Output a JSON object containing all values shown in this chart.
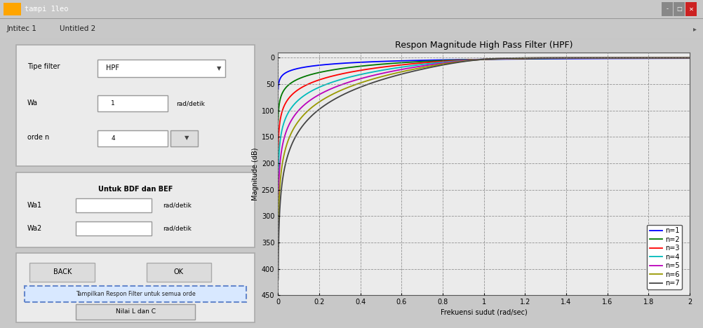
{
  "title": "Respon Magnitude High Pass Filter (HPF)",
  "xlabel": "Frekuensi sudut (rad/sec)",
  "ylabel": "Magnitude (dB)",
  "xlim": [
    0,
    2
  ],
  "ylim": [
    -450,
    10
  ],
  "ytick_vals": [
    0,
    -50,
    -100,
    -150,
    -200,
    -250,
    -300,
    -350,
    -400,
    -450
  ],
  "ytick_labels": [
    "0",
    "50",
    "100",
    "150",
    "200",
    "250",
    "300",
    "350",
    "400",
    "450"
  ],
  "xtick_vals": [
    0,
    0.2,
    0.4,
    0.6,
    0.8,
    1.0,
    1.2,
    1.4,
    1.6,
    1.8,
    2.0
  ],
  "xtick_labels": [
    "0",
    "0.2",
    "0.4",
    "0.6",
    "0.8",
    "1",
    "1.2",
    "1.4",
    "1.6",
    "1.8",
    "2"
  ],
  "orders": [
    1,
    2,
    3,
    4,
    5,
    6,
    7
  ],
  "line_colors": [
    "#0000FF",
    "#007700",
    "#FF0000",
    "#00BBBB",
    "#BB00BB",
    "#999900",
    "#444444"
  ],
  "legend_labels": [
    "n=1",
    "n=2",
    "n=3",
    "n=4",
    "n=5",
    "n=6",
    "n=7"
  ],
  "bg_color": "#C8C8C8",
  "panel_color": "#E8E8E8",
  "plot_bg": "#EAEAEA",
  "title_bar_color": "#1F3870",
  "title_bar_text": "tampi 1leo",
  "tab1": "Jntitec 1",
  "tab2": "Untitled 2",
  "type_filter_label": "Tipe filter",
  "type_filter_value": "HPF",
  "wa_label": "Wa",
  "wa_value": "1",
  "wa_unit": "rad/detik",
  "order_label": "orde n",
  "order_value": "4",
  "bdf_bef_label": "Untuk BDF dan BEF",
  "wa1_label": "Wa1",
  "wa1_unit": "rad/detik",
  "wa2_label": "Wa2",
  "wa2_unit": "rad/detik",
  "back_btn": "BACK",
  "ok_btn": "OK",
  "show_btn": "Tampilkan Respon Filter untuk semua orde",
  "nilai_btn": "Nilai L dan C",
  "title_fontsize": 9,
  "axis_fontsize": 7,
  "tick_fontsize": 7
}
